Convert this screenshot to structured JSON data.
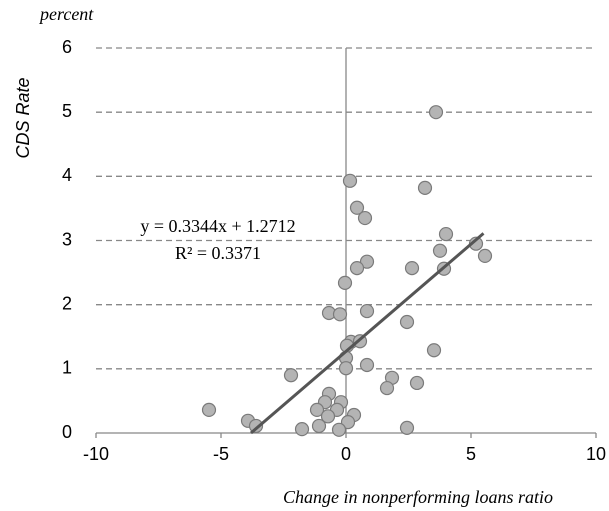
{
  "chart_data": {
    "type": "scatter",
    "y_unit": "percent",
    "ylabel": "CDS Rate",
    "xlabel": "Change in nonperforming loans ratio",
    "x": [
      3.6,
      0.16,
      3.16,
      0.44,
      0.76,
      4.0,
      5.2,
      3.76,
      5.56,
      2.64,
      3.92,
      0.84,
      0.44,
      -0.04,
      -0.68,
      -0.24,
      0.84,
      2.44,
      0.2,
      0.56,
      0.04,
      0.0,
      0.0,
      0.84,
      3.52,
      -2.2,
      1.84,
      1.64,
      2.84,
      -0.68,
      -0.84,
      -0.2,
      -1.16,
      -0.36,
      -0.72,
      0.32,
      0.08,
      -1.08,
      -0.28,
      -1.76,
      -3.92,
      -3.6,
      -5.48,
      2.44
    ],
    "values": [
      5.0,
      3.93,
      3.82,
      3.51,
      3.35,
      3.1,
      2.95,
      2.84,
      2.76,
      2.57,
      2.56,
      2.67,
      2.57,
      2.34,
      1.87,
      1.85,
      1.9,
      1.73,
      1.42,
      1.43,
      1.36,
      1.17,
      1.01,
      1.06,
      1.29,
      0.9,
      0.86,
      0.7,
      0.78,
      0.61,
      0.48,
      0.48,
      0.36,
      0.36,
      0.26,
      0.28,
      0.17,
      0.11,
      0.05,
      0.06,
      0.19,
      0.11,
      0.36,
      0.08
    ],
    "color": "#b4b4b4",
    "trendline": {
      "slope": 0.3344,
      "intercept": 1.2712,
      "x_range": [
        -3.8,
        5.5
      ],
      "color": "#555555"
    },
    "annotations": [
      "y = 0.3344x + 1.2712",
      "R² = 0.3371"
    ],
    "xlim": [
      -10,
      10
    ],
    "xticks": [
      -10,
      -5,
      0,
      5,
      10
    ],
    "ylim": [
      0,
      6
    ],
    "yticks": [
      0,
      1,
      2,
      3,
      4,
      5,
      6
    ],
    "grid": true
  }
}
